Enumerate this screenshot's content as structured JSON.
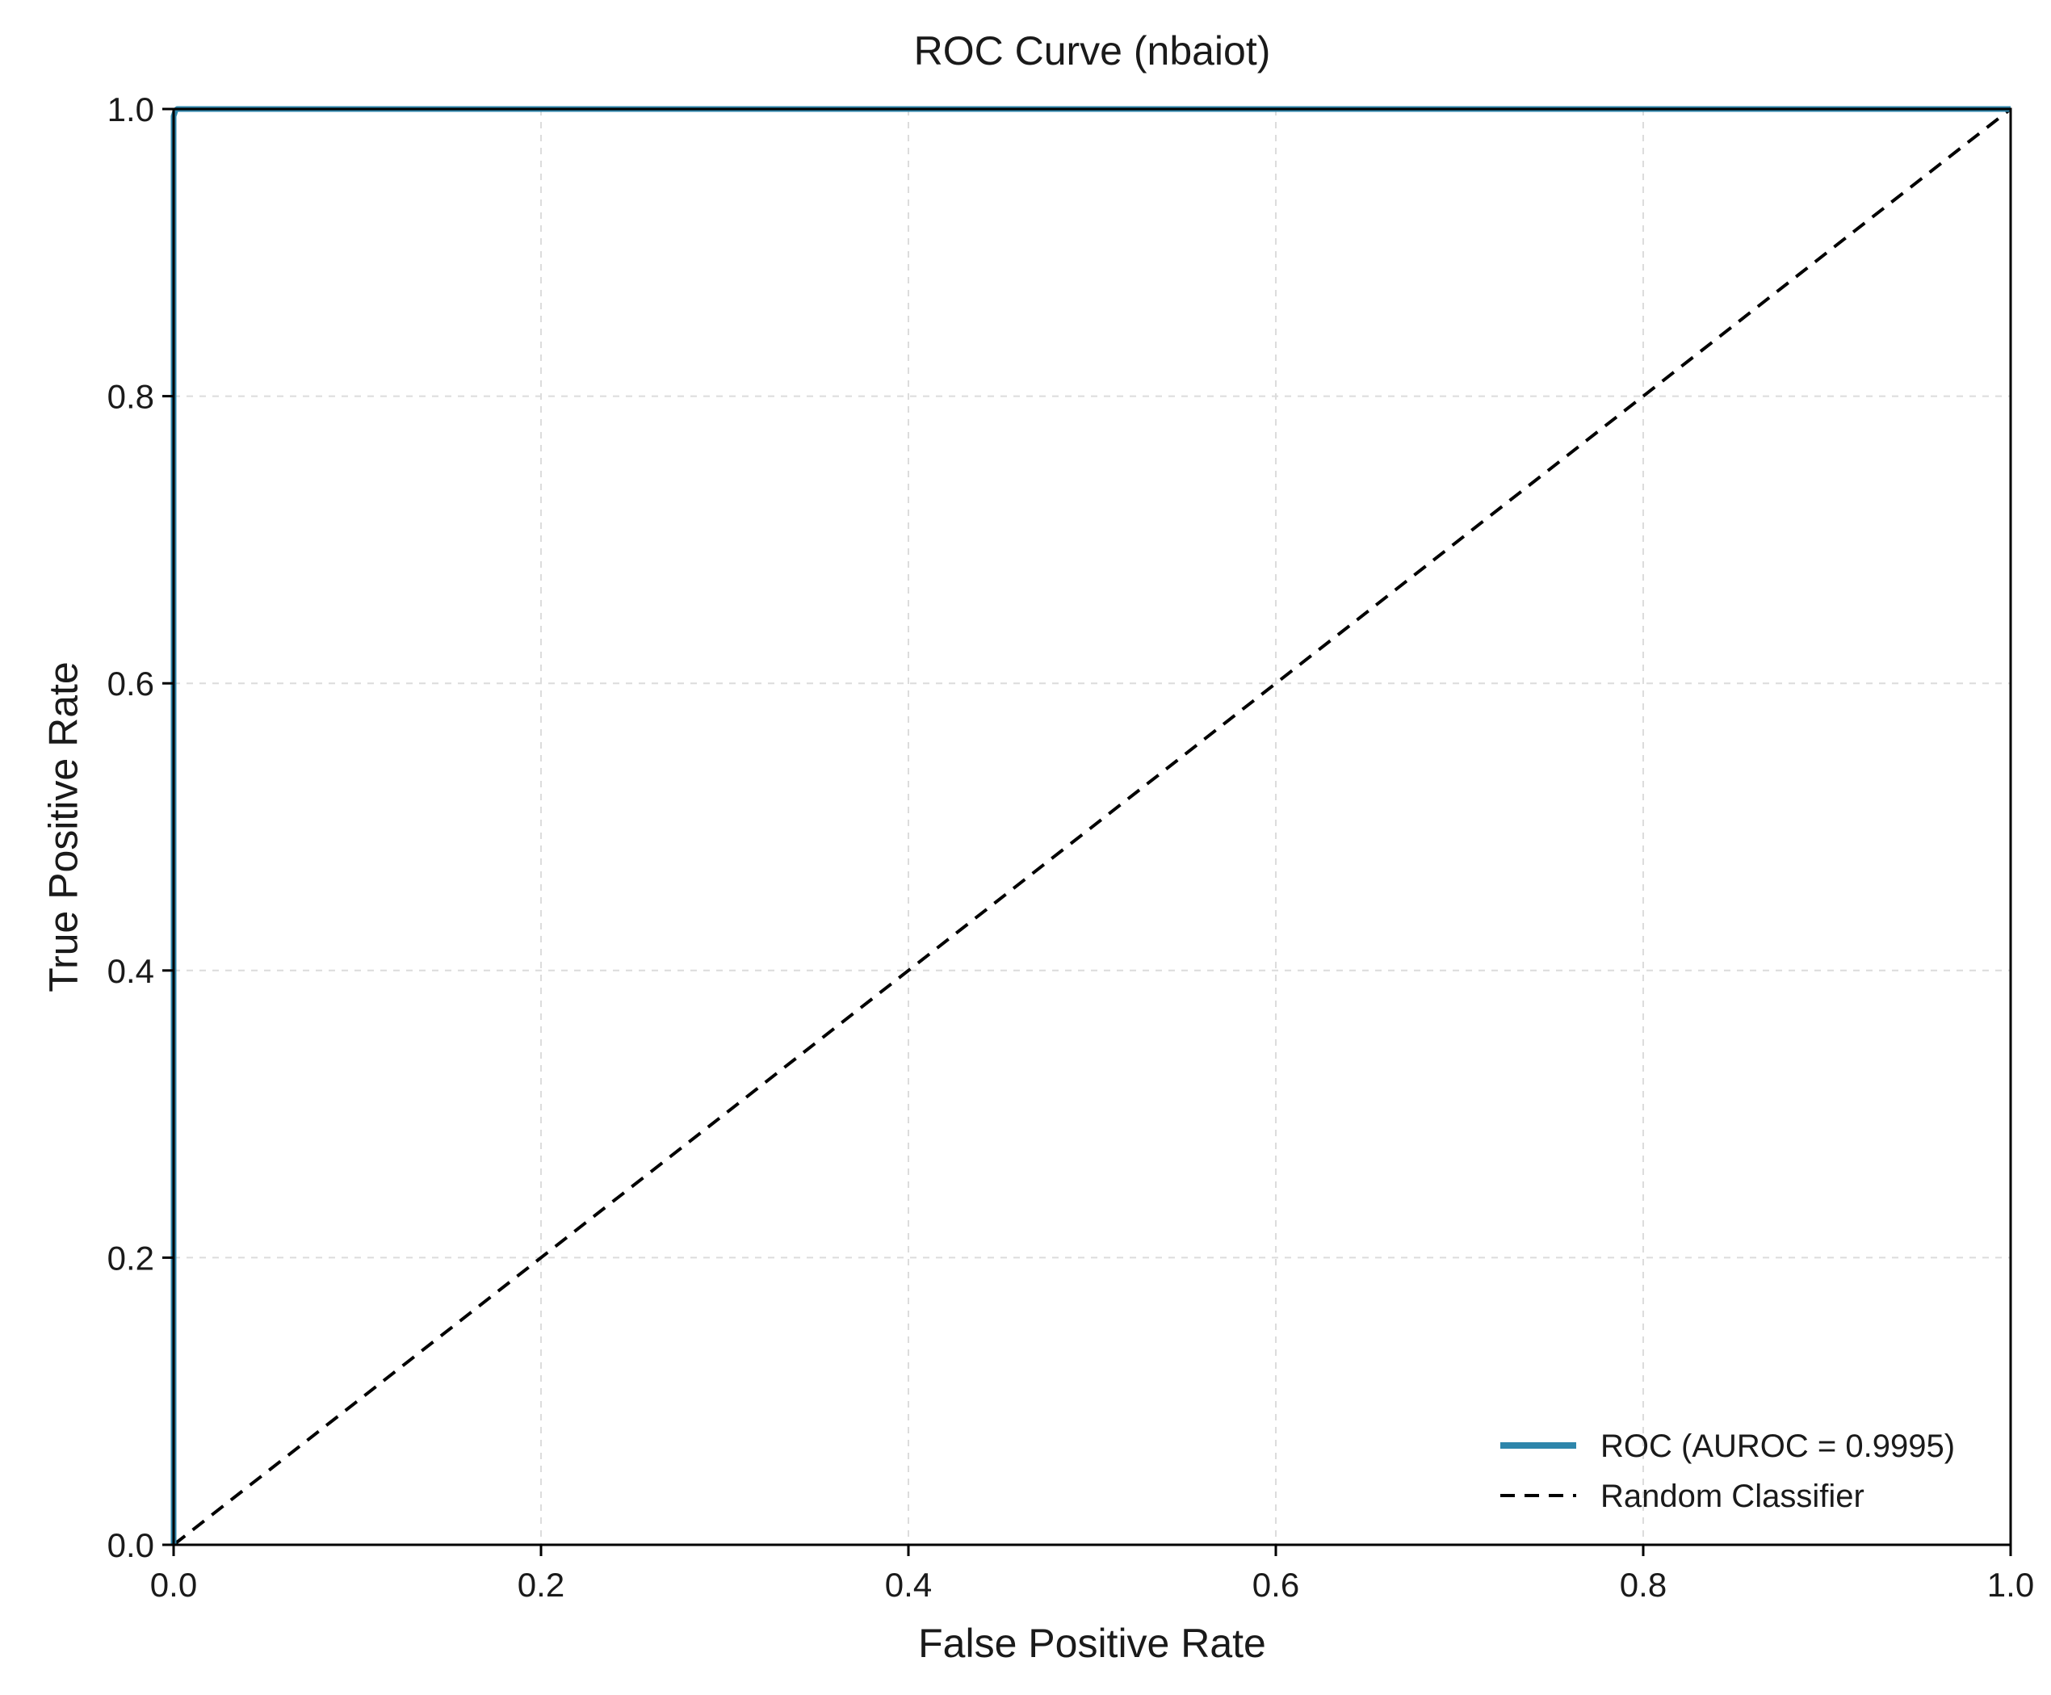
{
  "chart_data": {
    "type": "line",
    "title": "ROC Curve (nbaiot)",
    "xlabel": "False Positive Rate",
    "ylabel": "True Positive Rate",
    "xlim": [
      0,
      1
    ],
    "ylim": [
      0,
      1
    ],
    "xticks": [
      0.0,
      0.2,
      0.4,
      0.6,
      0.8,
      1.0
    ],
    "yticks": [
      0.0,
      0.2,
      0.4,
      0.6,
      0.8,
      1.0
    ],
    "grid": true,
    "legend_position": "bottom-right",
    "series": [
      {
        "name": "ROC (AUROC = 0.9995)",
        "style": "solid",
        "color": "#2e86ab",
        "x": [
          0.0,
          0.0,
          0.001,
          0.002,
          0.5,
          1.0
        ],
        "y": [
          0.0,
          0.995,
          0.999,
          1.0,
          1.0,
          1.0
        ]
      },
      {
        "name": "Random Classifier",
        "style": "dashed",
        "color": "#000000",
        "x": [
          0.0,
          1.0
        ],
        "y": [
          0.0,
          1.0
        ]
      }
    ]
  }
}
